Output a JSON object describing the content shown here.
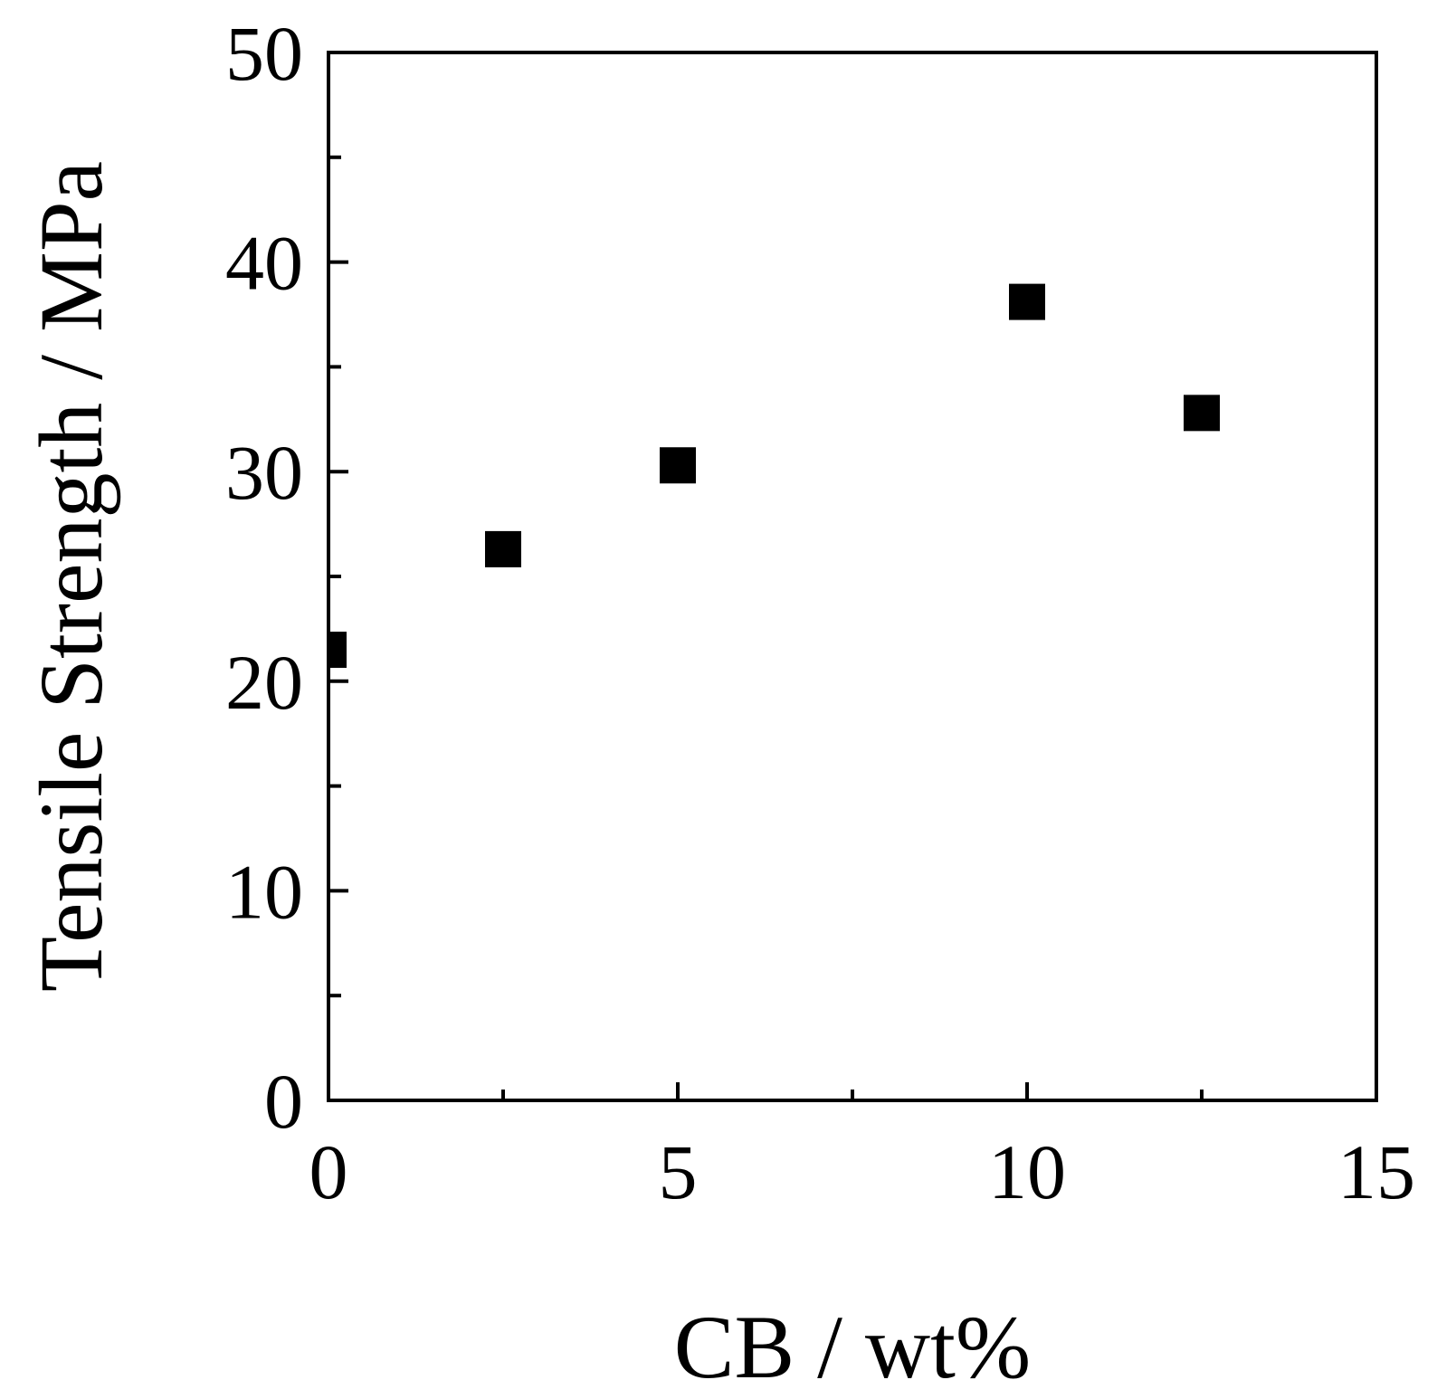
{
  "chart_data": {
    "type": "scatter",
    "title": "",
    "xlabel": "CB / wt%",
    "ylabel": "Tensile Strength / MPa",
    "xlim": [
      0,
      15
    ],
    "ylim": [
      0,
      50
    ],
    "x_ticks": [
      "0",
      "5",
      "10",
      "15"
    ],
    "y_ticks": [
      "0",
      "10",
      "20",
      "30",
      "40",
      "50"
    ],
    "grid": false,
    "legend": "none",
    "marker": "square",
    "marker_color": "#000000",
    "series": [
      {
        "x": [
          0,
          2.5,
          5,
          10,
          12.5
        ],
        "y": [
          21.5,
          26.3,
          30.3,
          38.1,
          32.8
        ]
      }
    ]
  }
}
